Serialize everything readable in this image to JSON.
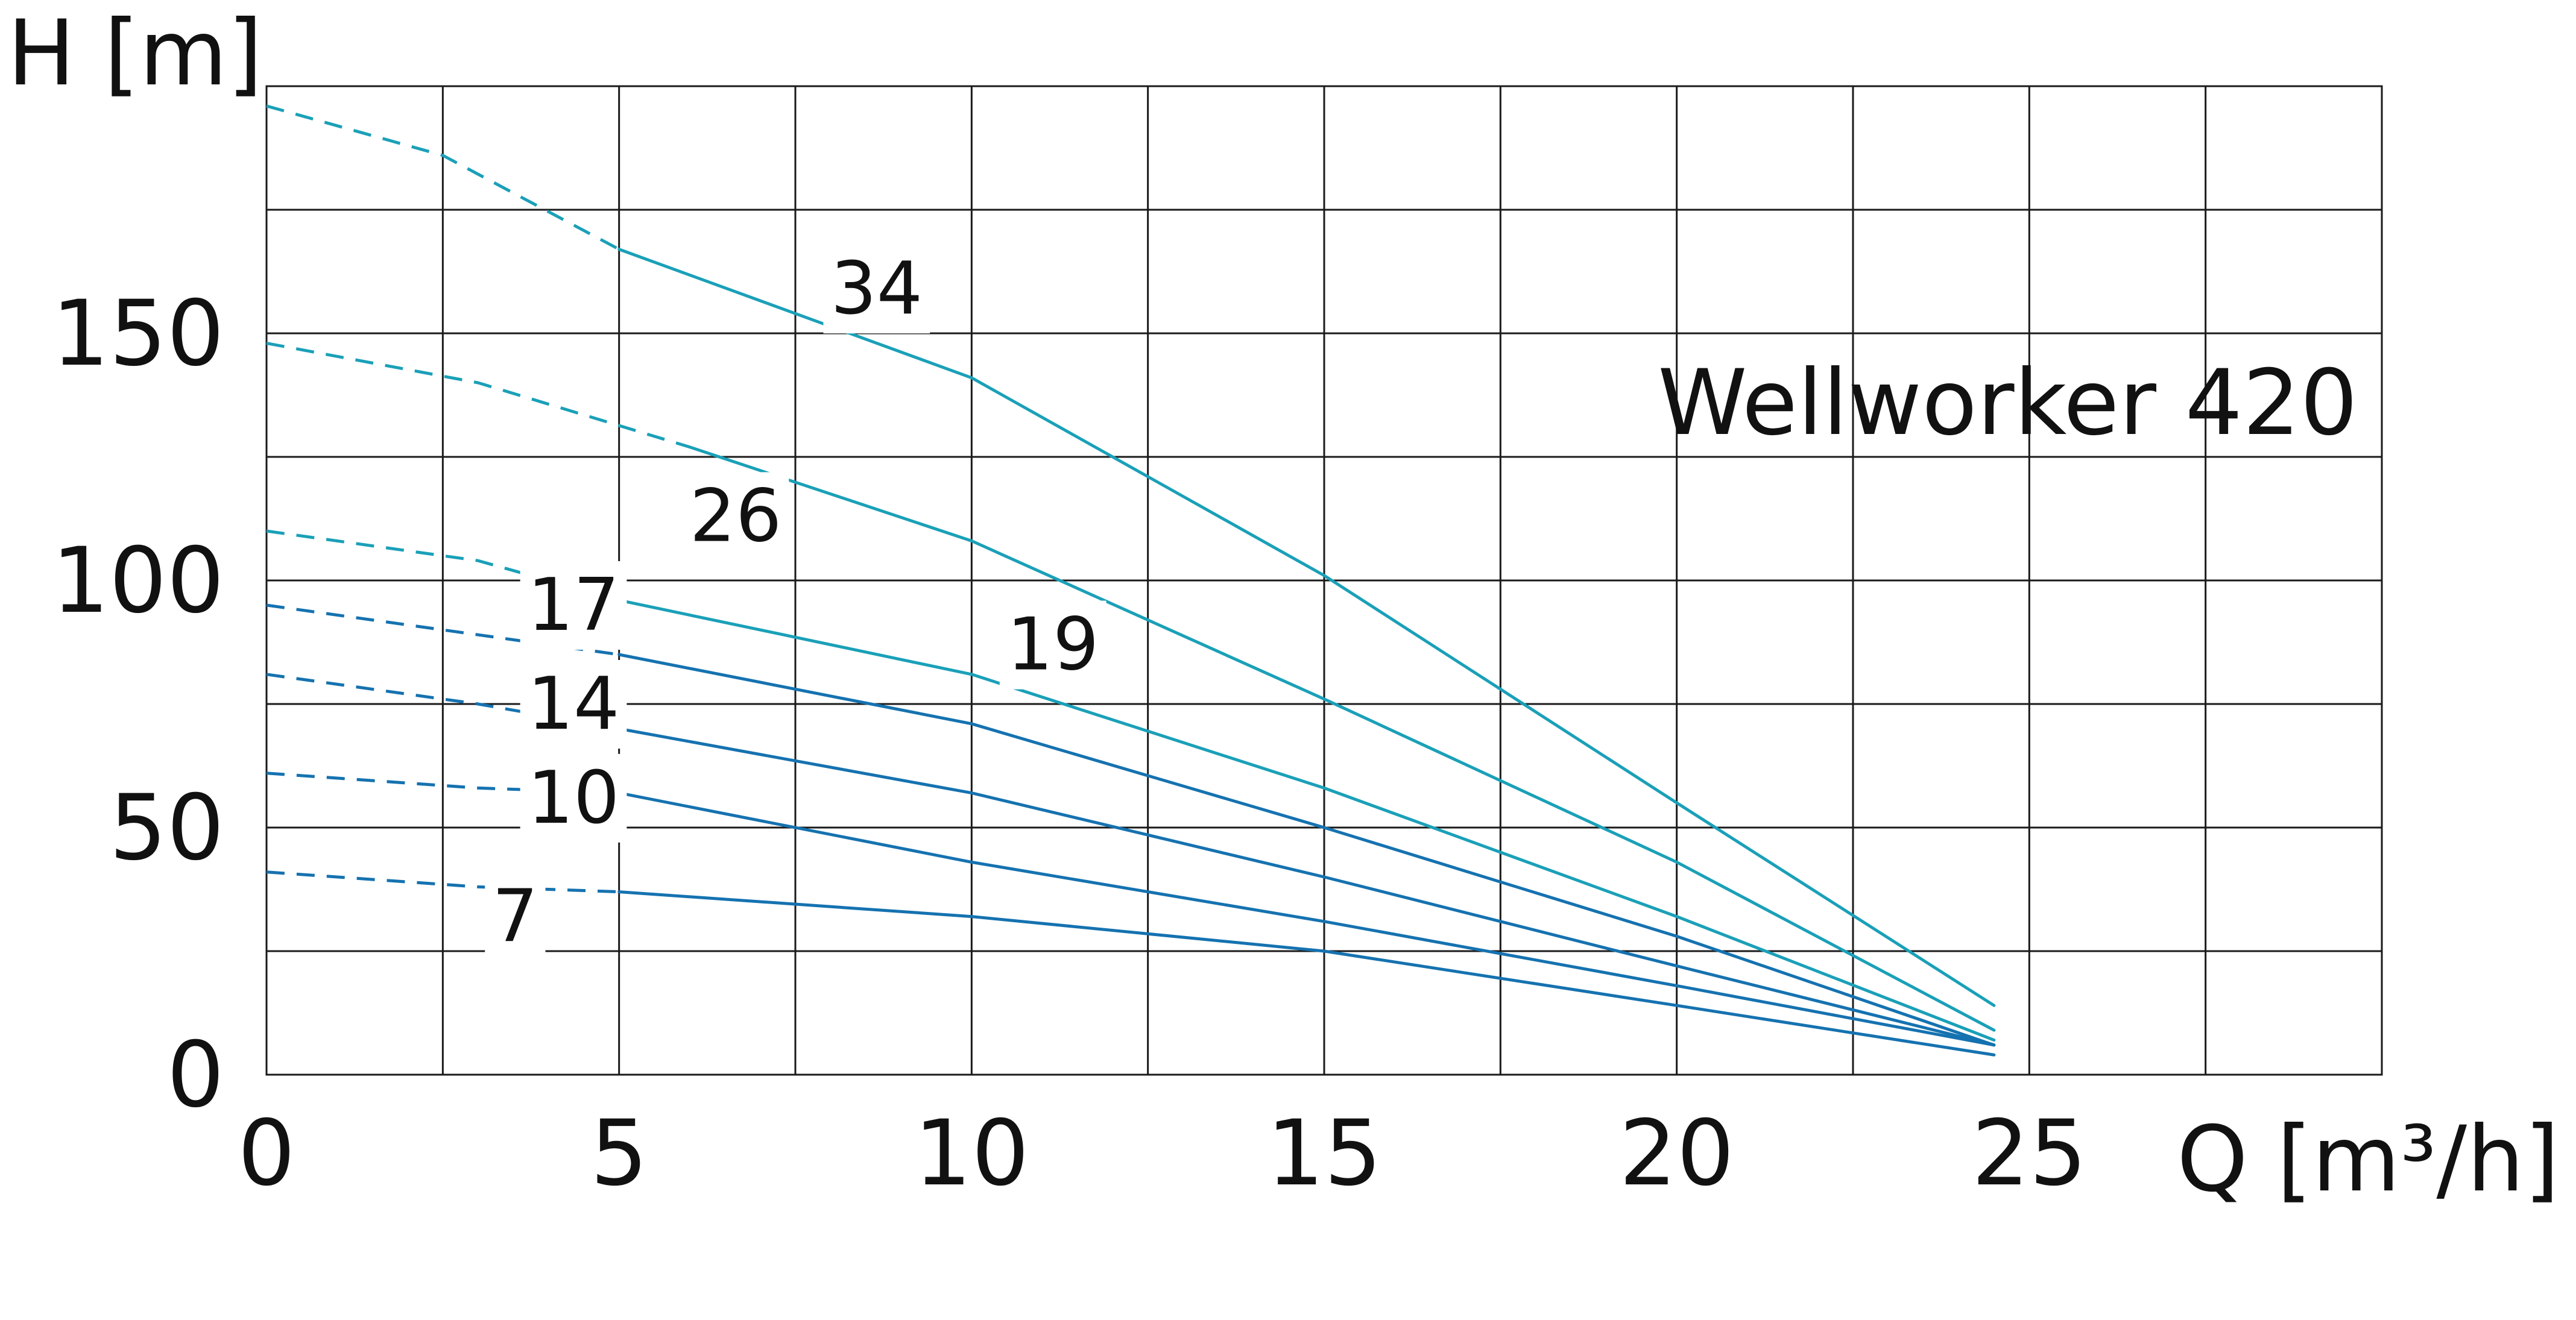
{
  "chart_data": {
    "type": "line",
    "title": "Wellworker 420",
    "xlabel": "Q [m³/h]",
    "ylabel": "H [m]",
    "xlim": [
      0,
      30
    ],
    "ylim": [
      0,
      200
    ],
    "x_ticks": [
      "0",
      "5",
      "10",
      "15",
      "20",
      "25"
    ],
    "y_ticks": [
      "0",
      "50",
      "100",
      "150"
    ],
    "grid": true,
    "colors": {
      "teal": "#1aa0b8",
      "blue": "#1572b0"
    },
    "series": [
      {
        "name": "34",
        "color": "#1aa0b8",
        "dashed_until": 5,
        "x": [
          0,
          2.5,
          5,
          10,
          15,
          20,
          24.5
        ],
        "y": [
          196,
          186,
          167,
          141,
          101,
          55,
          14
        ]
      },
      {
        "name": "26",
        "color": "#1aa0b8",
        "dashed_until": 6,
        "x": [
          0,
          3,
          6,
          10,
          15,
          20,
          24.5
        ],
        "y": [
          148,
          140,
          127,
          108,
          76,
          43,
          9
        ]
      },
      {
        "name": "19",
        "color": "#1aa0b8",
        "dashed_until": 5,
        "x": [
          0,
          3,
          5,
          10,
          15,
          20,
          24.5
        ],
        "y": [
          110,
          104,
          96,
          81,
          58,
          32,
          7
        ]
      },
      {
        "name": "17",
        "color": "#1572b0",
        "dashed_until": 5,
        "x": [
          0,
          3,
          5,
          10,
          15,
          20,
          24.5
        ],
        "y": [
          95,
          89,
          85,
          71,
          50,
          28,
          6
        ]
      },
      {
        "name": "14",
        "color": "#1572b0",
        "dashed_until": 5,
        "x": [
          0,
          3,
          5,
          10,
          15,
          20,
          24.5
        ],
        "y": [
          81,
          75,
          70,
          57,
          40,
          22,
          6
        ]
      },
      {
        "name": "10",
        "color": "#1572b0",
        "dashed_until": 5,
        "x": [
          0,
          3,
          5,
          10,
          15,
          20,
          24.5
        ],
        "y": [
          61,
          58,
          57,
          43,
          31,
          18,
          6
        ]
      },
      {
        "name": "7",
        "color": "#1572b0",
        "dashed_until": 5,
        "x": [
          0,
          3,
          5,
          10,
          15,
          20,
          24.5
        ],
        "y": [
          41,
          38,
          37,
          32,
          25,
          14,
          4
        ]
      }
    ]
  }
}
